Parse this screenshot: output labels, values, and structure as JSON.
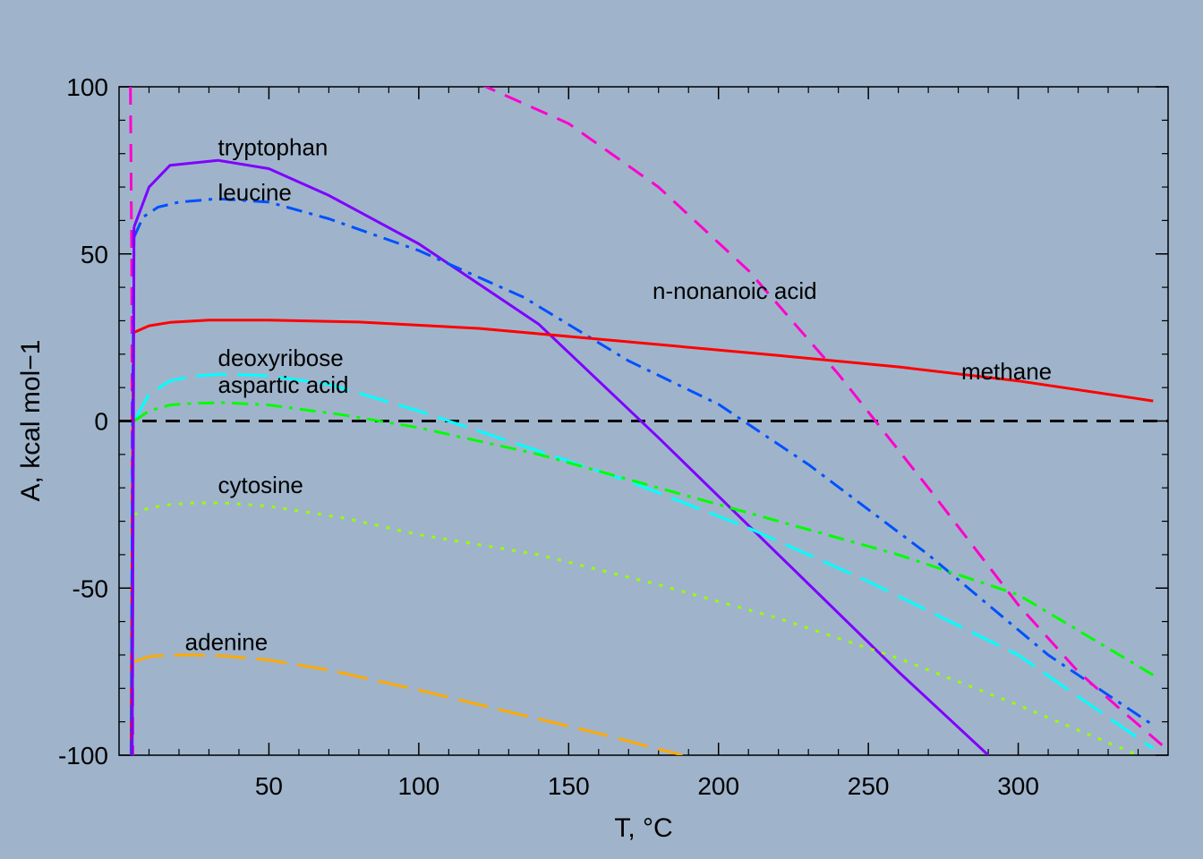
{
  "chart_data": {
    "type": "line",
    "xlabel": "T, °C",
    "ylabel": "A, kcal mol−1",
    "xlim": [
      0,
      350
    ],
    "ylim": [
      -100,
      100
    ],
    "xticks": [
      50,
      100,
      150,
      200,
      250,
      300
    ],
    "yticks": [
      100,
      50,
      0,
      -50,
      -100
    ],
    "series": [
      {
        "name": "tryptophan",
        "color": "#7f00ff",
        "dash": "solid",
        "x": [
          5,
          10,
          17,
          33,
          50,
          70,
          100,
          140,
          180,
          220,
          260,
          290
        ],
        "y": [
          58,
          70,
          76.5,
          78,
          75.5,
          67.5,
          53,
          29,
          -5,
          -40,
          -75,
          -100
        ]
      },
      {
        "name": "leucine",
        "color": "#0050ff",
        "dash": "dashdot",
        "x": [
          5,
          8,
          13,
          20,
          33,
          50,
          70,
          100,
          135,
          170,
          200,
          230,
          270,
          310,
          345
        ],
        "y": [
          55,
          61,
          64,
          65.5,
          66.5,
          65.5,
          60.5,
          51,
          37,
          18,
          5,
          -13,
          -40,
          -70,
          -91
        ]
      },
      {
        "name": "methane",
        "color": "#ff0000",
        "dash": "solid",
        "x": [
          5,
          10,
          17,
          30,
          50,
          80,
          120,
          170,
          220,
          260,
          300,
          345
        ],
        "y": [
          26.5,
          28.5,
          29.5,
          30.2,
          30.2,
          29.6,
          27.7,
          23.7,
          19.6,
          16.2,
          12,
          6
        ]
      },
      {
        "name": "n-nonanoic acid",
        "color": "#ff00cc",
        "dash": "dashed",
        "x": [
          120,
          150,
          180,
          210,
          240,
          270,
          300,
          320,
          335,
          348
        ],
        "y": [
          101,
          89,
          70,
          45,
          14,
          -20,
          -55,
          -75,
          -87,
          -97
        ]
      },
      {
        "name": "deoxyribose",
        "color": "#00ffff",
        "dash": "longdash",
        "x": [
          5,
          10,
          17,
          25,
          35,
          50,
          70,
          100,
          130,
          170,
          210,
          250,
          300,
          345
        ],
        "y": [
          0,
          8,
          12,
          13.5,
          14,
          13.5,
          11,
          3,
          -6,
          -18,
          -32,
          -48,
          -70,
          -98
        ]
      },
      {
        "name": "aspartic acid",
        "color": "#00ff00",
        "dash": "dashdot",
        "x": [
          5,
          10,
          17,
          25,
          35,
          50,
          75,
          100,
          140,
          180,
          220,
          260,
          300,
          345
        ],
        "y": [
          0,
          3,
          4.8,
          5.3,
          5.5,
          4.8,
          1.8,
          -2,
          -10,
          -20,
          -30,
          -40,
          -52,
          -76
        ]
      },
      {
        "name": "cytosine",
        "color": "#99ff00",
        "dash": "dotted",
        "x": [
          5,
          10,
          17,
          25,
          35,
          50,
          75,
          100,
          140,
          180,
          220,
          260,
          300,
          340
        ],
        "y": [
          -28,
          -26,
          -25,
          -24.5,
          -24.5,
          -25.5,
          -29,
          -34,
          -40,
          -49,
          -59,
          -71,
          -85,
          -100
        ]
      },
      {
        "name": "adenine",
        "color": "#ffaa00",
        "dash": "longdash",
        "x": [
          5,
          10,
          17,
          25,
          35,
          50,
          70,
          100,
          130,
          160,
          188
        ],
        "y": [
          -72,
          -70.5,
          -70,
          -70,
          -70.3,
          -71.5,
          -74.5,
          -80.5,
          -87,
          -93.5,
          -100
        ]
      }
    ],
    "near_zero_spikes": [
      {
        "color": "#ff00cc",
        "dash": "dashed",
        "x": [
          3.8,
          4.2,
          4.6
        ],
        "y": [
          100,
          50,
          -100
        ]
      },
      {
        "color": "#ff0000",
        "dash": "solid",
        "x": [
          4.0,
          4.4,
          4.8
        ],
        "y": [
          -100,
          -30,
          26.5
        ]
      },
      {
        "color": "#0050ff",
        "dash": "dashdot",
        "x": [
          4.1,
          4.5,
          5.0
        ],
        "y": [
          -100,
          0,
          55
        ]
      },
      {
        "color": "#7f00ff",
        "dash": "solid",
        "x": [
          4.4,
          4.8,
          5.0
        ],
        "y": [
          -100,
          0,
          58
        ]
      }
    ],
    "labels": [
      {
        "text": "tryptophan",
        "x": 33,
        "y": 79.5
      },
      {
        "text": "leucine",
        "x": 33,
        "y": 66
      },
      {
        "text": "n-nonanoic acid",
        "x": 178,
        "y": 36.5
      },
      {
        "text": "methane",
        "x": 281,
        "y": 12.5
      },
      {
        "text": "deoxyribose",
        "x": 33,
        "y": 16.5
      },
      {
        "text": "aspartic acid",
        "x": 33,
        "y": 8.5
      },
      {
        "text": "cytosine",
        "x": 33,
        "y": -21.5
      },
      {
        "text": "adenine",
        "x": 22,
        "y": -68.5
      }
    ],
    "zero_line": {
      "y": 0,
      "color": "#000000",
      "dash": "dashed"
    },
    "grid": false,
    "legend": "none"
  }
}
